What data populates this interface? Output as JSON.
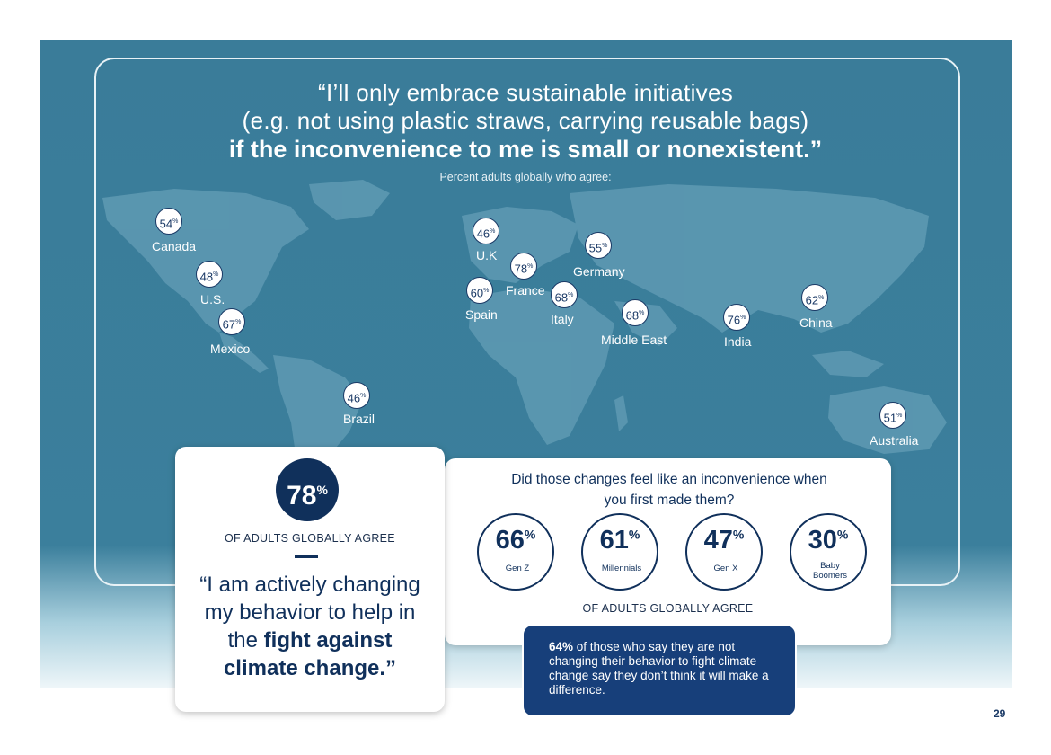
{
  "header": {
    "line1": "“I’ll only embrace sustainable initiatives",
    "line2": "(e.g. not using plastic straws, carrying reusable bags)",
    "line3": "if the inconvenience to me is small or nonexistent.”",
    "subtitle": "Percent adults globally who agree:"
  },
  "countries": [
    {
      "name": "Canada",
      "value": "54"
    },
    {
      "name": "U.S.",
      "value": "48"
    },
    {
      "name": "Mexico",
      "value": "67"
    },
    {
      "name": "Brazil",
      "value": "46"
    },
    {
      "name": "U.K",
      "value": "46"
    },
    {
      "name": "France",
      "value": "78"
    },
    {
      "name": "Spain",
      "value": "60"
    },
    {
      "name": "Italy",
      "value": "68"
    },
    {
      "name": "Germany",
      "value": "55"
    },
    {
      "name": "Middle East",
      "value": "68"
    },
    {
      "name": "India",
      "value": "76"
    },
    {
      "name": "China",
      "value": "62"
    },
    {
      "name": "Australia",
      "value": "51"
    }
  ],
  "percent_symbol": "%",
  "left_card": {
    "big_value": "78",
    "agree": "OF ADULTS GLOBALLY AGREE",
    "quote_line1": "“I am actively changing",
    "quote_line2": "my behavior to help in",
    "quote_line3_plain": "the ",
    "quote_line3_bold": "fight against",
    "quote_line4_bold": "climate change.”"
  },
  "right_card": {
    "question_line1": "Did those changes feel like an inconvenience when",
    "question_line2": "you first made them?",
    "generations": [
      {
        "value": "66",
        "label": "Gen Z"
      },
      {
        "value": "61",
        "label": "Millennials"
      },
      {
        "value": "47",
        "label": "Gen X"
      },
      {
        "value": "30",
        "label_line1": "Baby",
        "label_line2": "Boomers"
      }
    ],
    "agree": "OF ADULTS GLOBALLY AGREE"
  },
  "note": {
    "bold": "64%",
    "text": " of those who say they are not changing their behavior to fight climate change say they don’t think it will make a difference."
  },
  "page_number": "29",
  "colors": {
    "panel": "#3b7f9c",
    "navy": "#10305b",
    "note_bg": "#173f7a"
  }
}
